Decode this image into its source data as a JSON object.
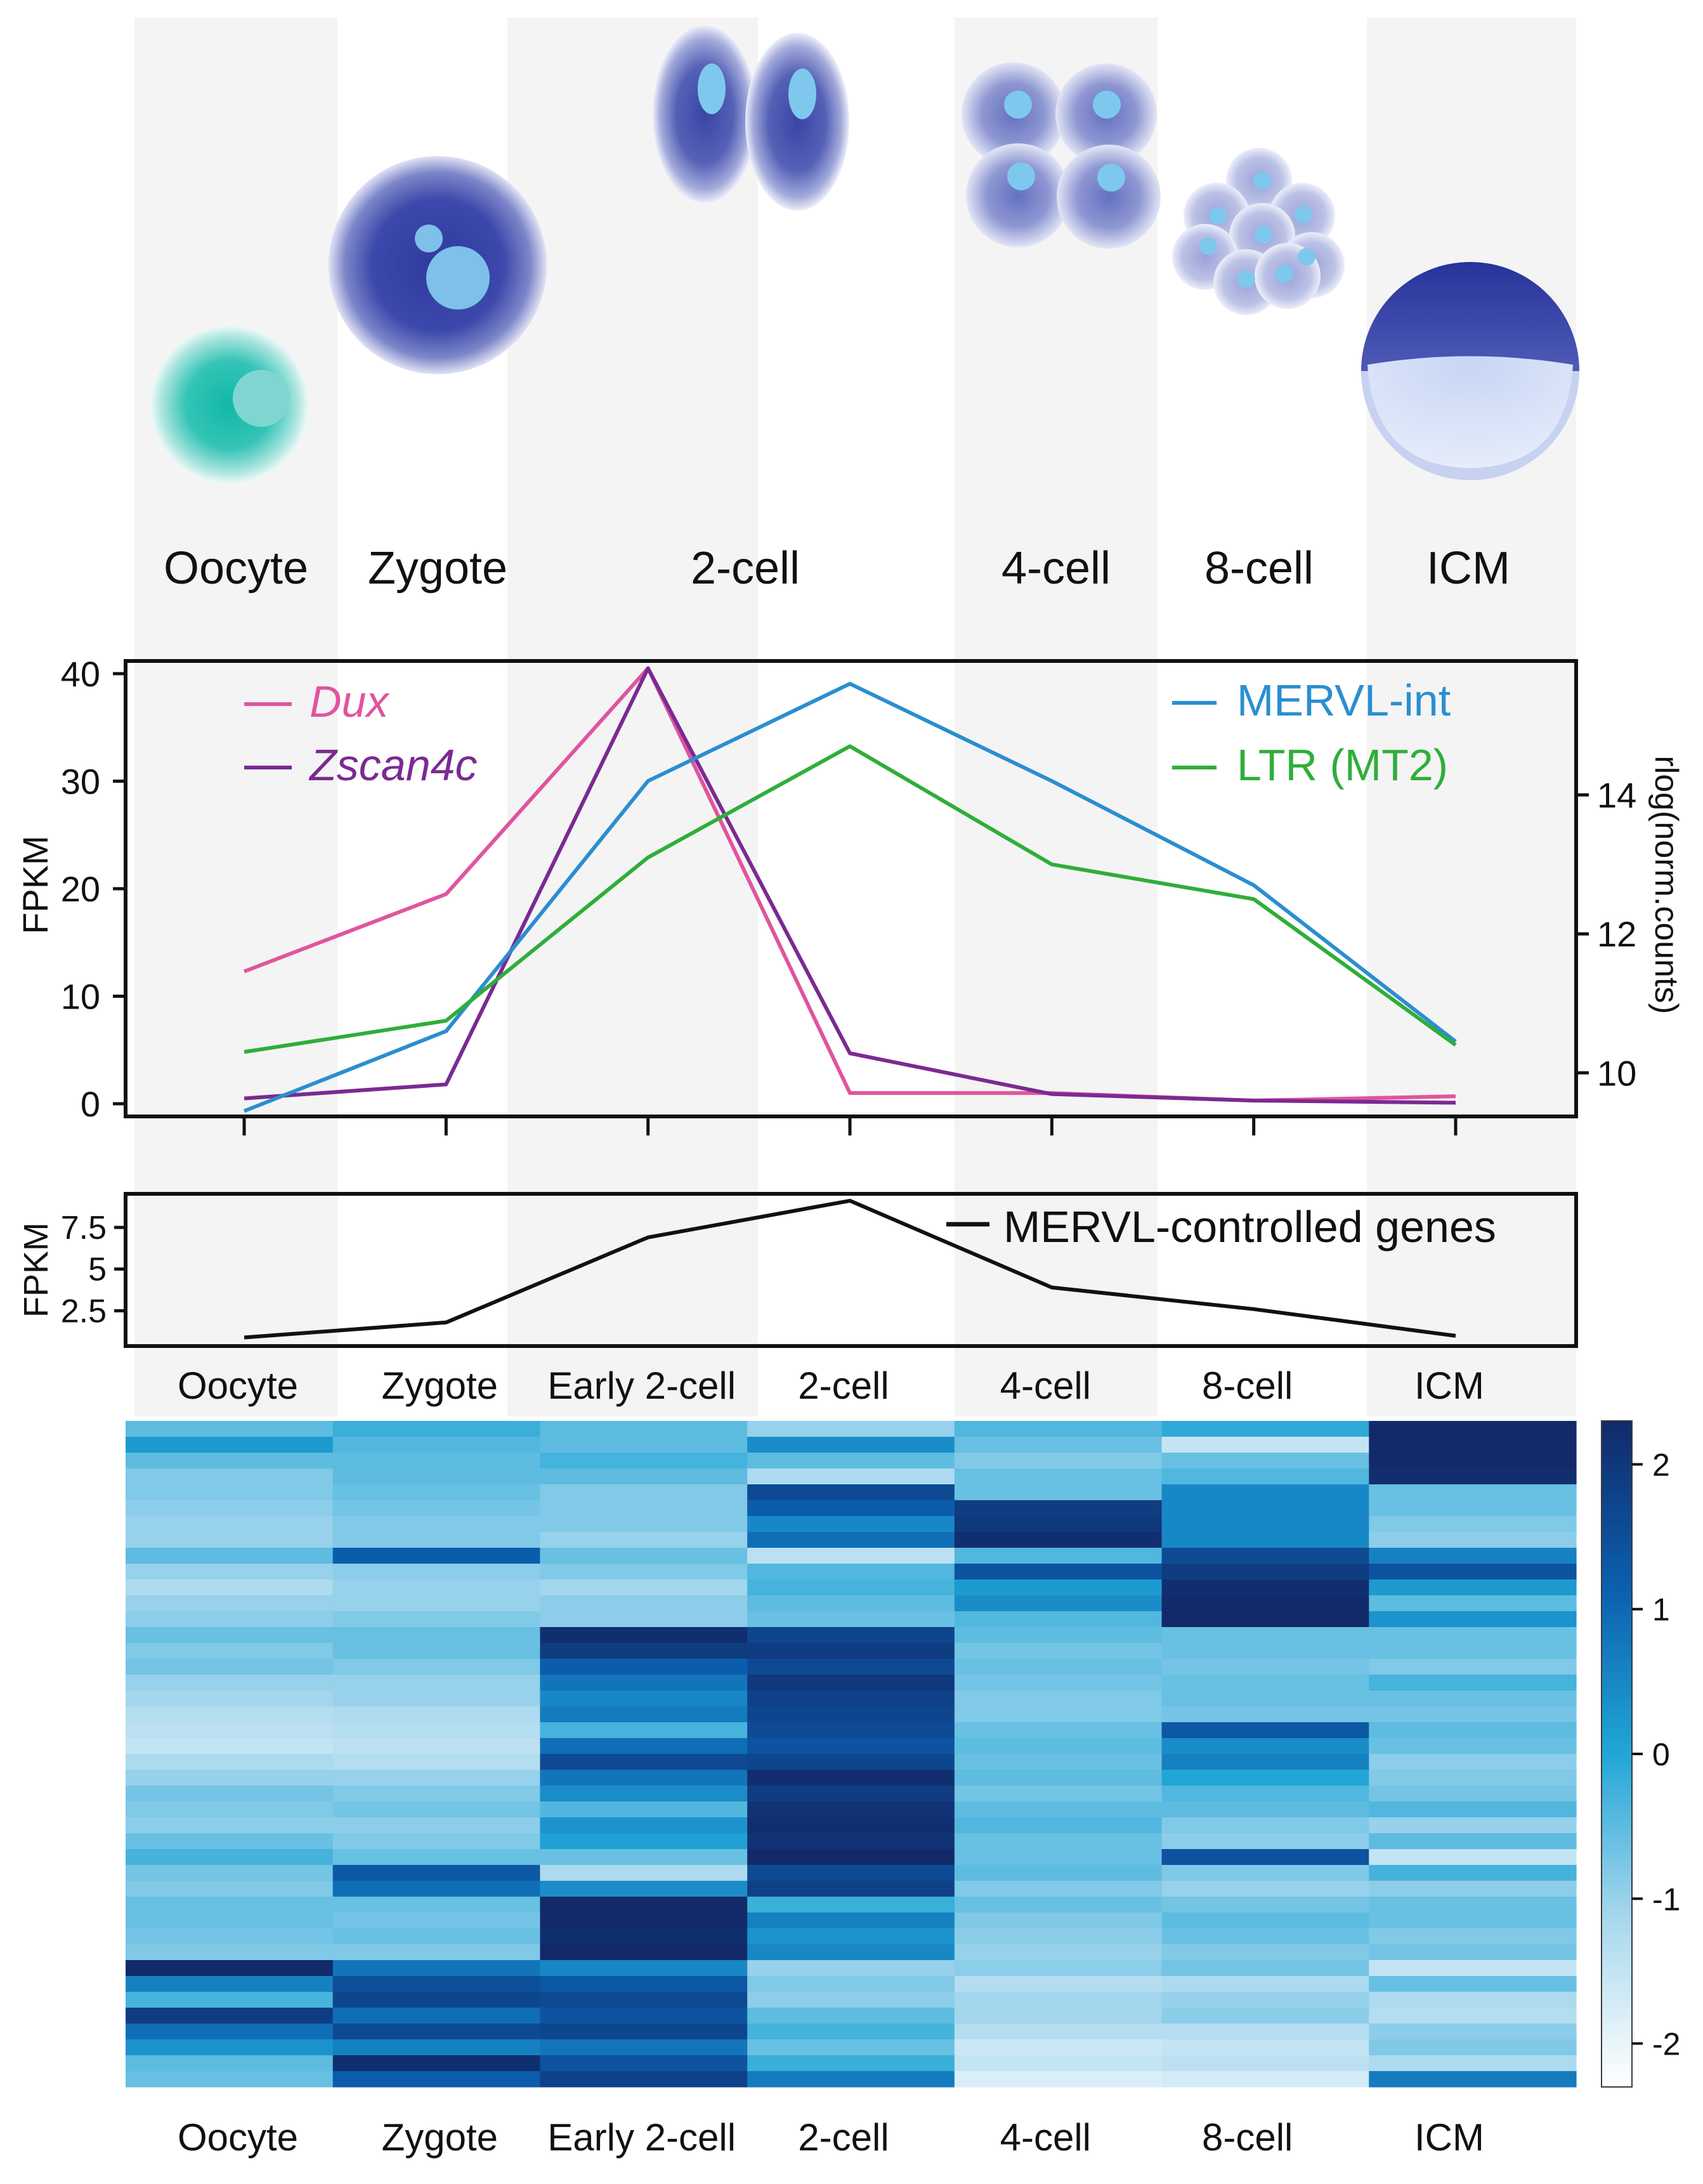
{
  "colors": {
    "dux": "#e0559d",
    "zscan4c": "#7b2a92",
    "mervl_int": "#2b8ed0",
    "ltr_mt2": "#2fae3a",
    "mervl_genes": "#111111",
    "stripe": "#f4f4f4",
    "oocyte_cell": "#2bbfb0",
    "embryo_cell": "#4a56b0",
    "nucleus": "#7ec8ee",
    "heat_low": "#ffffff",
    "heat_mid": "#22a6d6",
    "heat_high": "#122a6a"
  },
  "stages": {
    "labels": [
      "Oocyte",
      "Zygote",
      "2-cell",
      "4-cell",
      "8-cell",
      "ICM"
    ],
    "icons": [
      "oocyte-icon",
      "zygote-icon",
      "two-cell-embryo-icon",
      "four-cell-embryo-icon",
      "eight-cell-embryo-icon",
      "icm-blastocyst-icon"
    ]
  },
  "chart_data": [
    {
      "type": "line",
      "name": "expression-chart",
      "categories": [
        "Oocyte",
        "Zygote",
        "Early 2-cell",
        "2-cell",
        "4-cell",
        "8-cell",
        "ICM"
      ],
      "ylabel": "FPKM",
      "ylim": [
        -1,
        41
      ],
      "yticks": [
        0,
        10,
        20,
        30,
        40
      ],
      "y2label": "rlog(norm.counts)",
      "y2lim": [
        9.4,
        15.9
      ],
      "y2ticks": [
        10,
        12,
        14
      ],
      "legend_left": [
        "Dux",
        "Zscan4c"
      ],
      "legend_right": [
        "MERVL-int",
        "LTR (MT2)"
      ],
      "series": [
        {
          "name": "Dux",
          "axis": "left",
          "color_key": "dux",
          "values": [
            12.3,
            19.5,
            40.5,
            1.0,
            1.0,
            0.3,
            0.7
          ]
        },
        {
          "name": "Zscan4c",
          "axis": "left",
          "color_key": "zscan4c",
          "values": [
            0.5,
            1.8,
            40.5,
            4.7,
            0.9,
            0.3,
            0.1
          ]
        },
        {
          "name": "MERVL-int",
          "axis": "right",
          "color_key": "mervl_int",
          "values": [
            9.45,
            10.6,
            14.2,
            15.6,
            14.2,
            12.7,
            10.45
          ]
        },
        {
          "name": "LTR (MT2)",
          "axis": "right",
          "color_key": "ltr_mt2",
          "values": [
            10.3,
            10.75,
            13.1,
            14.7,
            13.0,
            12.5,
            10.4
          ]
        }
      ]
    },
    {
      "type": "line",
      "name": "mervl-genes-chart",
      "categories": [
        "Oocyte",
        "Zygote",
        "Early 2-cell",
        "2-cell",
        "4-cell",
        "8-cell",
        "ICM"
      ],
      "ylabel": "FPKM",
      "ylim": [
        0.5,
        9.4
      ],
      "yticks": [
        2.5,
        5,
        7.5
      ],
      "ytick_labels": [
        "2.5",
        "5",
        "7.5"
      ],
      "legend": [
        "MERVL-controlled genes"
      ],
      "series": [
        {
          "name": "MERVL-controlled genes",
          "color_key": "mervl_genes",
          "values": [
            0.9,
            1.8,
            6.9,
            9.1,
            3.9,
            2.6,
            1.0
          ]
        }
      ]
    },
    {
      "type": "heatmap",
      "name": "mervl-genes-heatmap",
      "columns": [
        "Oocyte",
        "Zygote",
        "Early 2-cell",
        "2-cell",
        "4-cell",
        "8-cell",
        "ICM"
      ],
      "colorbar_range": [
        -2.3,
        2.3
      ],
      "colorbar_ticks": [
        2,
        1,
        0,
        -1,
        -2
      ],
      "rows": [
        [
          -0.5,
          -0.2,
          -0.5,
          -1.0,
          -0.4,
          -0.1,
          2.3
        ],
        [
          0.2,
          -0.4,
          -0.5,
          0.4,
          -0.6,
          -1.5,
          2.3
        ],
        [
          -0.5,
          -0.5,
          -0.3,
          -0.5,
          -0.8,
          -0.6,
          2.3
        ],
        [
          -0.8,
          -0.5,
          -0.5,
          -1.2,
          -0.6,
          -0.4,
          2.2
        ],
        [
          -0.8,
          -0.6,
          -0.8,
          1.6,
          -0.6,
          0.5,
          -0.6
        ],
        [
          -0.9,
          -0.7,
          -0.8,
          1.2,
          1.9,
          0.5,
          -0.6
        ],
        [
          -1.0,
          -0.8,
          -0.8,
          0.5,
          2.0,
          0.5,
          -0.8
        ],
        [
          -1.0,
          -0.8,
          -1.0,
          0.9,
          2.2,
          0.5,
          -0.9
        ],
        [
          -0.5,
          1.2,
          -0.6,
          -1.4,
          -0.4,
          1.6,
          0.6
        ],
        [
          -1.0,
          -0.9,
          -0.8,
          -0.4,
          1.4,
          1.9,
          1.4
        ],
        [
          -1.2,
          -1.0,
          -1.1,
          -0.3,
          0.2,
          2.2,
          0.2
        ],
        [
          -1.0,
          -1.0,
          -0.9,
          -0.5,
          0.4,
          2.3,
          -0.5
        ],
        [
          -0.9,
          -0.8,
          -0.9,
          -0.6,
          -0.4,
          2.3,
          0.3
        ],
        [
          -0.6,
          -0.6,
          2.2,
          1.7,
          -0.5,
          -0.6,
          -0.6
        ],
        [
          -0.8,
          -0.6,
          1.9,
          1.9,
          -0.7,
          -0.6,
          -0.6
        ],
        [
          -0.7,
          -0.8,
          1.2,
          1.6,
          -0.6,
          -0.7,
          -0.8
        ],
        [
          -1.0,
          -1.0,
          0.8,
          2.0,
          -0.7,
          -0.6,
          -0.3
        ],
        [
          -1.1,
          -1.0,
          0.5,
          1.8,
          -0.8,
          -0.6,
          -0.6
        ],
        [
          -1.3,
          -1.2,
          0.7,
          1.7,
          -0.8,
          -0.7,
          -0.7
        ],
        [
          -1.4,
          -1.3,
          -0.3,
          1.6,
          -0.6,
          1.3,
          -0.5
        ],
        [
          -1.5,
          -1.4,
          0.9,
          1.4,
          -0.5,
          0.4,
          -0.6
        ],
        [
          -1.2,
          -1.3,
          1.6,
          1.7,
          -0.6,
          0.6,
          -0.9
        ],
        [
          -1.0,
          -1.0,
          0.8,
          2.2,
          -0.5,
          0.0,
          -0.8
        ],
        [
          -0.7,
          -0.8,
          0.4,
          1.9,
          -0.7,
          -0.4,
          -0.7
        ],
        [
          -0.8,
          -0.7,
          -0.4,
          2.1,
          -0.5,
          -0.5,
          -0.4
        ],
        [
          -0.9,
          -0.9,
          0.3,
          2.2,
          -0.4,
          -0.8,
          -1.0
        ],
        [
          -0.6,
          -0.8,
          0.1,
          2.1,
          -0.6,
          -0.9,
          -0.5
        ],
        [
          -0.3,
          -0.6,
          -0.6,
          2.3,
          -0.6,
          1.4,
          -1.5
        ],
        [
          -0.7,
          1.3,
          -1.2,
          1.6,
          -0.5,
          -0.8,
          -0.3
        ],
        [
          -0.8,
          0.9,
          0.4,
          1.8,
          -0.8,
          -1.0,
          -0.9
        ],
        [
          -0.6,
          -0.6,
          2.3,
          -0.2,
          -0.6,
          -0.7,
          -0.6
        ],
        [
          -0.6,
          -0.7,
          2.3,
          0.6,
          -0.8,
          -0.5,
          -0.6
        ],
        [
          -0.7,
          -0.6,
          2.2,
          0.3,
          -0.9,
          -0.6,
          -0.8
        ],
        [
          -0.8,
          -0.8,
          2.3,
          0.5,
          -1.0,
          -0.8,
          -0.7
        ],
        [
          2.3,
          0.8,
          0.5,
          -1.0,
          -0.9,
          -0.7,
          -1.5
        ],
        [
          0.6,
          1.5,
          1.3,
          -0.8,
          -1.3,
          -1.2,
          -0.6
        ],
        [
          -0.3,
          1.7,
          1.6,
          -0.9,
          -1.1,
          -1.0,
          -1.2
        ],
        [
          1.9,
          0.9,
          1.4,
          -0.5,
          -1.1,
          -0.9,
          -1.3
        ],
        [
          0.9,
          1.6,
          1.7,
          -0.3,
          -1.3,
          -1.3,
          -0.9
        ],
        [
          0.3,
          0.6,
          0.8,
          -0.6,
          -1.6,
          -1.5,
          -0.8
        ],
        [
          -0.5,
          2.2,
          1.4,
          -0.2,
          -1.5,
          -1.4,
          -1.2
        ],
        [
          -0.6,
          1.2,
          1.8,
          0.7,
          -1.8,
          -1.7,
          0.7
        ]
      ]
    }
  ]
}
